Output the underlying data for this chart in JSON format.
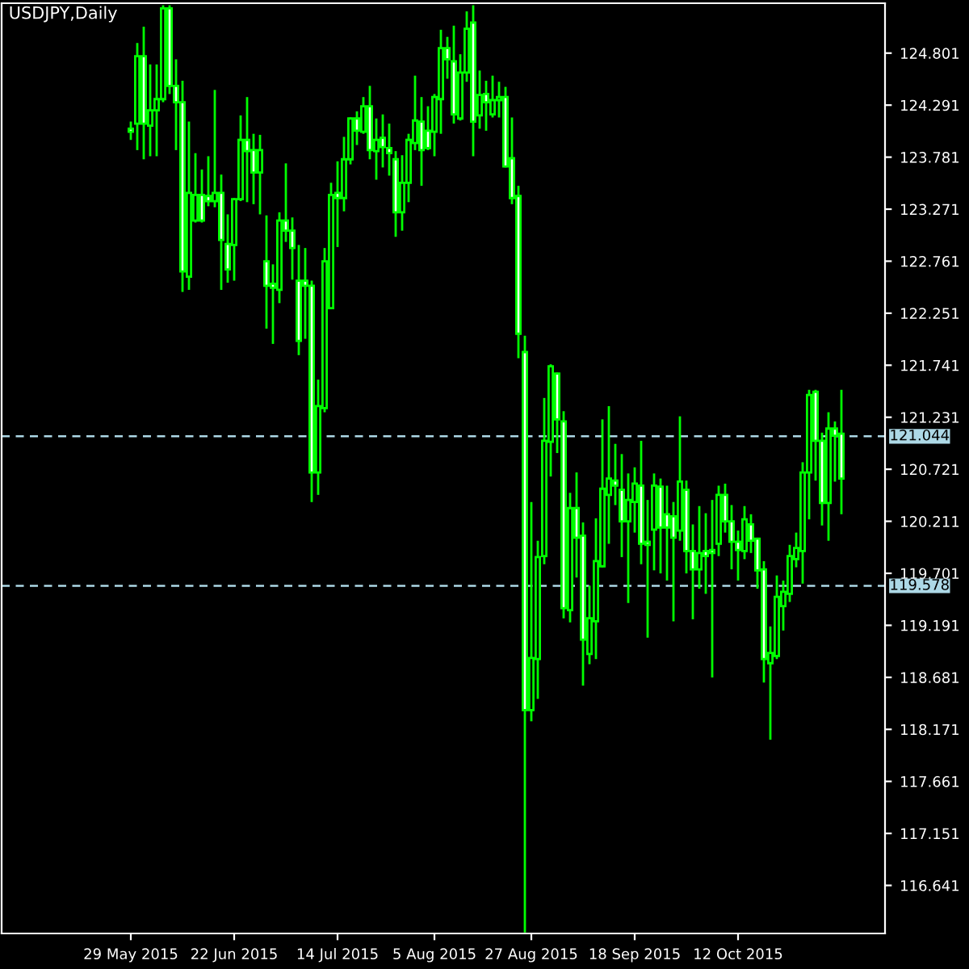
{
  "chart_data": {
    "type": "candlestick",
    "title": "USDJPY,Daily",
    "categories": [
      "29 May 2015",
      null,
      null,
      null,
      null,
      null,
      null,
      null,
      null,
      null,
      null,
      null,
      null,
      null,
      null,
      null,
      "22 Jun 2015",
      null,
      null,
      null,
      null,
      null,
      null,
      null,
      null,
      null,
      null,
      null,
      null,
      null,
      null,
      null,
      "14 Jul 2015",
      null,
      null,
      null,
      null,
      null,
      null,
      null,
      null,
      null,
      null,
      null,
      null,
      null,
      null,
      "5 Aug 2015",
      null,
      null,
      null,
      null,
      null,
      null,
      null,
      null,
      null,
      null,
      null,
      null,
      null,
      null,
      "27 Aug 2015",
      null,
      null,
      null,
      null,
      null,
      null,
      null,
      null,
      null,
      null,
      null,
      null,
      null,
      null,
      null,
      "18 Sep 2015",
      null,
      null,
      null,
      null,
      null,
      null,
      null,
      null,
      null,
      null,
      null,
      null,
      null,
      null,
      null,
      "12 Oct 2015",
      null,
      null,
      null,
      null,
      null,
      null,
      null,
      null,
      null,
      null,
      null,
      null,
      null,
      null,
      null,
      null
    ],
    "ohlc": [
      [
        124.06,
        124.13,
        123.95,
        124.03
      ],
      [
        124.11,
        124.9,
        123.85,
        124.77
      ],
      [
        124.77,
        125.06,
        123.76,
        124.11
      ],
      [
        124.09,
        124.69,
        123.79,
        124.24
      ],
      [
        124.24,
        124.69,
        123.79,
        124.35
      ],
      [
        124.35,
        125.27,
        124.32,
        125.24
      ],
      [
        125.24,
        125.27,
        124.4,
        124.48
      ],
      [
        124.48,
        124.74,
        123.85,
        124.32
      ],
      [
        124.32,
        124.53,
        122.46,
        122.66
      ],
      [
        122.61,
        124.13,
        122.48,
        123.43
      ],
      [
        123.16,
        123.82,
        123.14,
        123.41
      ],
      [
        123.41,
        123.66,
        123.14,
        123.16
      ],
      [
        123.4,
        123.79,
        123.3,
        123.35
      ],
      [
        123.35,
        124.44,
        123.29,
        123.43
      ],
      [
        123.43,
        123.61,
        122.48,
        122.97
      ],
      [
        122.93,
        123.22,
        122.55,
        122.68
      ],
      [
        122.92,
        123.38,
        122.57,
        123.37
      ],
      [
        123.37,
        124.19,
        123.35,
        123.95
      ],
      [
        123.95,
        124.37,
        123.34,
        123.84
      ],
      [
        123.85,
        124.01,
        123.32,
        123.63
      ],
      [
        123.63,
        124.0,
        123.22,
        123.85
      ],
      [
        122.76,
        123.21,
        122.1,
        122.52
      ],
      [
        122.54,
        122.73,
        121.95,
        122.5
      ],
      [
        122.48,
        123.24,
        122.35,
        123.16
      ],
      [
        123.16,
        123.72,
        122.95,
        123.06
      ],
      [
        123.06,
        123.19,
        122.58,
        122.89
      ],
      [
        122.57,
        122.92,
        121.84,
        121.98
      ],
      [
        122.57,
        122.89,
        122.0,
        122.52
      ],
      [
        122.52,
        122.57,
        120.4,
        120.69
      ],
      [
        120.69,
        121.6,
        120.47,
        121.34
      ],
      [
        121.32,
        122.89,
        121.28,
        122.76
      ],
      [
        122.3,
        123.53,
        122.29,
        123.41
      ],
      [
        123.43,
        123.74,
        122.9,
        123.38
      ],
      [
        123.38,
        123.98,
        123.25,
        123.76
      ],
      [
        123.76,
        124.17,
        123.71,
        124.16
      ],
      [
        124.16,
        124.23,
        123.9,
        124.04
      ],
      [
        124.03,
        124.37,
        124.01,
        124.28
      ],
      [
        124.28,
        124.48,
        123.76,
        123.85
      ],
      [
        123.84,
        124.16,
        123.56,
        123.95
      ],
      [
        123.97,
        124.2,
        123.68,
        123.88
      ],
      [
        123.87,
        124.11,
        123.6,
        123.82
      ],
      [
        123.76,
        123.84,
        123.0,
        123.24
      ],
      [
        123.24,
        123.8,
        123.06,
        123.53
      ],
      [
        123.53,
        124.01,
        123.34,
        123.95
      ],
      [
        123.92,
        124.58,
        123.85,
        124.14
      ],
      [
        124.13,
        124.37,
        123.5,
        123.85
      ],
      [
        124.04,
        124.28,
        123.85,
        123.87
      ],
      [
        124.03,
        124.4,
        123.79,
        124.37
      ],
      [
        124.35,
        125.03,
        124.01,
        124.85
      ],
      [
        124.85,
        124.96,
        124.55,
        124.74
      ],
      [
        124.72,
        125.07,
        124.11,
        124.2
      ],
      [
        124.16,
        124.79,
        124.14,
        124.61
      ],
      [
        124.61,
        125.21,
        124.52,
        125.04
      ],
      [
        125.1,
        125.27,
        123.79,
        124.13
      ],
      [
        124.19,
        124.63,
        124.06,
        124.39
      ],
      [
        124.4,
        124.53,
        124.04,
        124.32
      ],
      [
        124.2,
        124.58,
        124.17,
        124.34
      ],
      [
        124.34,
        124.52,
        124.17,
        124.37
      ],
      [
        124.37,
        124.47,
        123.68,
        123.69
      ],
      [
        123.77,
        124.17,
        123.32,
        123.38
      ],
      [
        123.4,
        123.5,
        121.81,
        122.05
      ],
      [
        121.87,
        122.03,
        116.18,
        118.36
      ],
      [
        118.36,
        120.4,
        118.25,
        118.87
      ],
      [
        118.86,
        120.02,
        118.47,
        119.86
      ],
      [
        119.87,
        121.42,
        119.79,
        121.0
      ],
      [
        120.99,
        121.75,
        120.65,
        121.73
      ],
      [
        121.66,
        121.67,
        120.88,
        121.21
      ],
      [
        121.19,
        121.29,
        119.26,
        119.36
      ],
      [
        119.34,
        120.49,
        119.22,
        120.34
      ],
      [
        120.34,
        120.69,
        119.66,
        120.05
      ],
      [
        120.07,
        120.2,
        118.6,
        119.05
      ],
      [
        118.91,
        119.58,
        118.81,
        119.26
      ],
      [
        119.23,
        120.24,
        118.86,
        119.82
      ],
      [
        119.77,
        121.21,
        119.76,
        120.53
      ],
      [
        120.47,
        121.34,
        119.99,
        120.63
      ],
      [
        120.61,
        120.97,
        120.37,
        120.56
      ],
      [
        120.52,
        120.87,
        119.86,
        120.21
      ],
      [
        120.21,
        120.68,
        119.41,
        120.42
      ],
      [
        120.4,
        120.74,
        120.1,
        120.58
      ],
      [
        120.56,
        121.0,
        119.79,
        119.99
      ],
      [
        120.01,
        120.42,
        119.07,
        119.98
      ],
      [
        120.13,
        120.68,
        119.73,
        120.56
      ],
      [
        120.55,
        120.63,
        119.7,
        120.15
      ],
      [
        120.28,
        120.56,
        119.63,
        120.15
      ],
      [
        120.26,
        120.4,
        119.23,
        120.05
      ],
      [
        120.12,
        121.24,
        120.02,
        120.6
      ],
      [
        120.52,
        120.61,
        119.7,
        119.92
      ],
      [
        119.92,
        120.18,
        119.25,
        119.74
      ],
      [
        119.74,
        120.36,
        119.55,
        119.9
      ],
      [
        119.92,
        120.29,
        119.5,
        119.87
      ],
      [
        119.93,
        120.42,
        118.68,
        119.9
      ],
      [
        119.99,
        120.56,
        119.87,
        120.47
      ],
      [
        120.47,
        120.58,
        120.1,
        120.21
      ],
      [
        120.21,
        120.37,
        119.74,
        120.01
      ],
      [
        120.01,
        120.12,
        119.63,
        119.93
      ],
      [
        119.92,
        120.36,
        119.84,
        120.23
      ],
      [
        120.18,
        120.28,
        119.9,
        120.02
      ],
      [
        120.04,
        120.05,
        119.55,
        119.73
      ],
      [
        119.74,
        119.82,
        118.63,
        118.86
      ],
      [
        118.82,
        119.18,
        118.07,
        118.92
      ],
      [
        118.89,
        119.68,
        118.86,
        119.47
      ],
      [
        119.38,
        119.63,
        119.14,
        119.52
      ],
      [
        119.5,
        119.98,
        119.42,
        119.87
      ],
      [
        119.84,
        120.1,
        119.76,
        119.95
      ],
      [
        119.92,
        120.79,
        119.6,
        120.69
      ],
      [
        120.69,
        121.5,
        120.23,
        121.45
      ],
      [
        121.48,
        121.5,
        120.61,
        121.0
      ],
      [
        121.0,
        121.08,
        120.17,
        120.39
      ],
      [
        120.39,
        121.28,
        120.02,
        121.12
      ],
      [
        121.12,
        121.19,
        120.6,
        121.05
      ],
      [
        121.07,
        121.5,
        120.28,
        120.63
      ]
    ],
    "color": "#00ff00",
    "ylim": [
      116.17,
      125.29
    ],
    "yticks": [
      124.801,
      124.291,
      123.781,
      123.271,
      122.761,
      122.251,
      121.741,
      121.231,
      120.721,
      120.211,
      119.701,
      119.191,
      118.681,
      118.171,
      117.661,
      117.151,
      116.641
    ],
    "ref_lines": [
      {
        "axis": "y",
        "value": 121.044,
        "label": "121.044",
        "color": "#add8e6",
        "line_style": "dashed"
      },
      {
        "axis": "y",
        "value": 119.578,
        "label": "119.578",
        "color": "#add8e6",
        "line_style": "dashed"
      }
    ]
  }
}
